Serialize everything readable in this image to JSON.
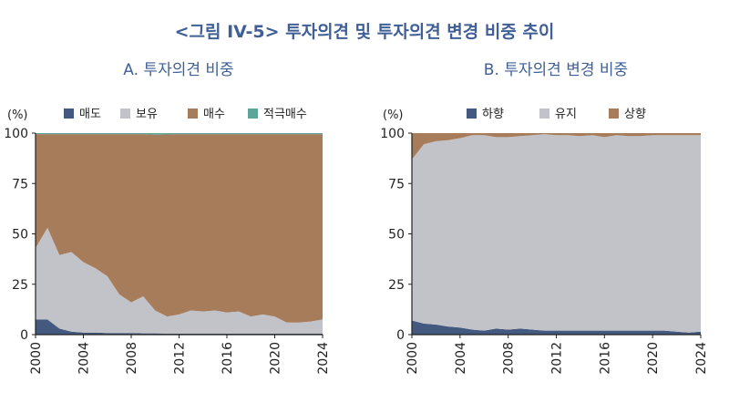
{
  "figure_title": "<그림 IV-5> 투자의견 및 투자의견 변경 비중 추이",
  "chart_data": [
    {
      "type": "area",
      "stacked": true,
      "title": "A. 투자의견 비중",
      "ylabel": "(%)",
      "x": [
        2000,
        2001,
        2002,
        2003,
        2004,
        2005,
        2006,
        2007,
        2008,
        2009,
        2010,
        2011,
        2012,
        2013,
        2014,
        2015,
        2016,
        2017,
        2018,
        2019,
        2020,
        2021,
        2022,
        2023,
        2024
      ],
      "xticks": [
        "2000",
        "2004",
        "2008",
        "2012",
        "2016",
        "2020",
        "2024"
      ],
      "yticks": [
        "0",
        "25",
        "50",
        "75",
        "100"
      ],
      "ylim": [
        0,
        100
      ],
      "legend_position": "top",
      "series": [
        {
          "name": "매도",
          "color": "#44597f",
          "values": [
            7.5,
            7.5,
            3,
            1.5,
            1,
            1,
            0.8,
            0.8,
            0.8,
            0.6,
            0.6,
            0.5,
            0.5,
            0.5,
            0.5,
            0.5,
            0.5,
            0.5,
            0.5,
            0.5,
            0.5,
            0.5,
            0.5,
            0.5,
            0.5
          ]
        },
        {
          "name": "보유",
          "color": "#c2c3c8",
          "values": [
            35.5,
            45.5,
            36.5,
            39.5,
            35,
            32,
            28.2,
            19.2,
            15.2,
            18.4,
            11.4,
            8.5,
            9.5,
            11.5,
            11,
            11.5,
            10.5,
            11,
            8.5,
            9.5,
            8.5,
            5.5,
            5.5,
            6,
            7
          ]
        },
        {
          "name": "매수",
          "color": "#a67c5b",
          "values": [
            56.5,
            46.5,
            60,
            58.5,
            63.5,
            66.5,
            70.5,
            79.5,
            83.5,
            80.5,
            87.2,
            90.3,
            89.5,
            87.5,
            88,
            87.5,
            88.5,
            88,
            90.5,
            89.5,
            90.5,
            93.5,
            93.5,
            93,
            92
          ]
        },
        {
          "name": "적극매수",
          "color": "#5da59b",
          "values": [
            0.5,
            0.5,
            0.5,
            0.5,
            0.5,
            0.5,
            0.5,
            0.5,
            0.5,
            0.5,
            0.8,
            0.7,
            0.5,
            0.5,
            0.5,
            0.5,
            0.5,
            0.5,
            0.5,
            0.5,
            0.5,
            0.5,
            0.5,
            0.5,
            0.5
          ]
        }
      ]
    },
    {
      "type": "area",
      "stacked": true,
      "title": "B. 투자의견 변경 비중",
      "ylabel": "(%)",
      "x": [
        2000,
        2001,
        2002,
        2003,
        2004,
        2005,
        2006,
        2007,
        2008,
        2009,
        2010,
        2011,
        2012,
        2013,
        2014,
        2015,
        2016,
        2017,
        2018,
        2019,
        2020,
        2021,
        2022,
        2023,
        2024
      ],
      "xticks": [
        "2000",
        "2004",
        "2008",
        "2012",
        "2016",
        "2020",
        "2024"
      ],
      "yticks": [
        "0",
        "25",
        "50",
        "75",
        "100"
      ],
      "ylim": [
        0,
        100
      ],
      "legend_position": "top",
      "series": [
        {
          "name": "하향",
          "color": "#44597f",
          "values": [
            7,
            5.5,
            5,
            4,
            3.5,
            2.5,
            2,
            3,
            2.5,
            3,
            2.5,
            2,
            2,
            2,
            2,
            2,
            2,
            2,
            2,
            2,
            2,
            2,
            1.5,
            1,
            1.5
          ]
        },
        {
          "name": "유지",
          "color": "#c2c3c8",
          "values": [
            80,
            89,
            91,
            92.5,
            94,
            96.5,
            97,
            95,
            95.5,
            95.5,
            96.5,
            97.5,
            97,
            97,
            96.5,
            97,
            96,
            97,
            96.5,
            96.5,
            97,
            97,
            97.5,
            98,
            97.5
          ]
        },
        {
          "name": "상향",
          "color": "#a67c5b",
          "values": [
            13,
            5.5,
            4,
            3.5,
            2.5,
            1,
            1,
            2,
            2,
            1.5,
            1,
            0.5,
            1,
            1,
            1.5,
            1,
            2,
            1,
            1.5,
            1.5,
            1,
            1,
            1,
            1,
            1
          ]
        }
      ]
    }
  ]
}
